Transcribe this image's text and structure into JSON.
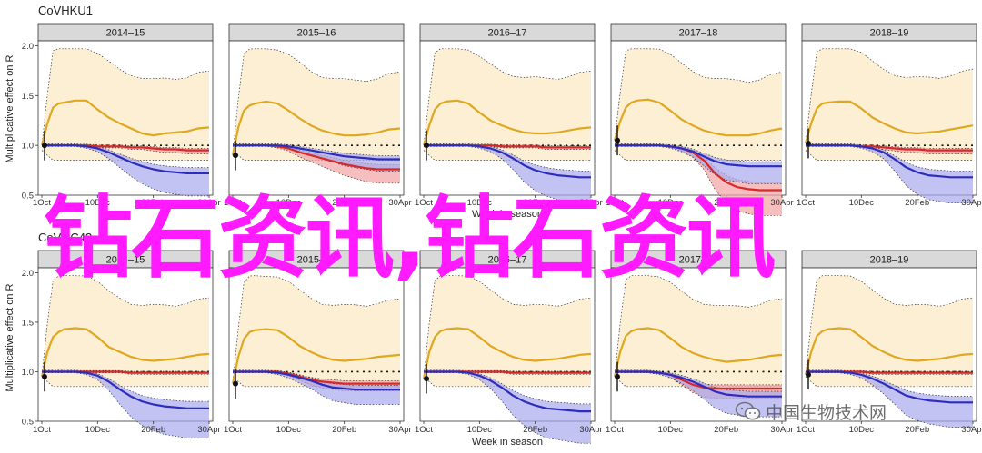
{
  "chart_data": [
    {
      "type": "line",
      "title": "CoVHKU1",
      "xlabel": "Week in season",
      "ylabel": "Multiplicative effect on R",
      "ylim": [
        0.5,
        2.05
      ],
      "yticks": [
        "0.5",
        "1.0",
        "1.5",
        "2.0"
      ],
      "xticks": [
        "1Oct",
        "10Dec",
        "20Feb",
        "30Apr"
      ],
      "reference_line": 1.0,
      "facets": [
        {
          "label": "2014–15",
          "x": [
            0,
            1,
            2,
            3,
            4,
            6,
            8,
            10,
            12,
            14,
            16,
            18,
            20,
            22,
            24,
            26,
            28,
            30
          ],
          "series": [
            {
              "color": "gold",
              "values": [
                1.0,
                1.22,
                1.38,
                1.42,
                1.43,
                1.45,
                1.45,
                1.36,
                1.28,
                1.22,
                1.17,
                1.12,
                1.1,
                1.12,
                1.13,
                1.14,
                1.17,
                1.18
              ]
            },
            {
              "color": "red",
              "values": [
                1.0,
                1.0,
                1.0,
                1.0,
                1.0,
                1.0,
                1.0,
                0.99,
                0.99,
                0.99,
                0.98,
                0.98,
                0.97,
                0.96,
                0.96,
                0.95,
                0.95,
                0.95
              ]
            },
            {
              "color": "blue",
              "values": [
                1.0,
                1.0,
                1.0,
                1.0,
                1.0,
                1.0,
                0.99,
                0.97,
                0.93,
                0.88,
                0.83,
                0.79,
                0.76,
                0.74,
                0.73,
                0.72,
                0.72,
                0.72
              ]
            }
          ]
        },
        {
          "label": "2015–16",
          "x": [
            0,
            1,
            2,
            3,
            4,
            6,
            8,
            10,
            12,
            14,
            16,
            18,
            20,
            22,
            24,
            26,
            28,
            30
          ],
          "series": [
            {
              "color": "gold",
              "values": [
                0.9,
                1.18,
                1.35,
                1.4,
                1.42,
                1.44,
                1.42,
                1.35,
                1.27,
                1.2,
                1.15,
                1.12,
                1.1,
                1.1,
                1.11,
                1.13,
                1.16,
                1.17
              ]
            },
            {
              "color": "red",
              "values": [
                1.0,
                1.0,
                1.0,
                1.0,
                1.0,
                1.0,
                0.99,
                0.97,
                0.93,
                0.9,
                0.87,
                0.84,
                0.81,
                0.79,
                0.77,
                0.76,
                0.76,
                0.76
              ]
            },
            {
              "color": "blue",
              "values": [
                1.0,
                1.0,
                1.0,
                1.0,
                1.0,
                1.0,
                1.0,
                0.99,
                0.97,
                0.95,
                0.93,
                0.91,
                0.89,
                0.88,
                0.87,
                0.86,
                0.86,
                0.86
              ]
            }
          ]
        },
        {
          "label": "2016–17",
          "x": [
            0,
            1,
            2,
            3,
            4,
            6,
            8,
            10,
            12,
            14,
            16,
            18,
            20,
            22,
            24,
            26,
            28,
            30
          ],
          "series": [
            {
              "color": "gold",
              "values": [
                1.0,
                1.2,
                1.36,
                1.42,
                1.44,
                1.45,
                1.42,
                1.33,
                1.25,
                1.2,
                1.16,
                1.13,
                1.12,
                1.12,
                1.13,
                1.15,
                1.17,
                1.18
              ]
            },
            {
              "color": "red",
              "values": [
                1.0,
                1.0,
                1.0,
                1.0,
                1.0,
                1.0,
                1.0,
                1.0,
                1.0,
                0.99,
                0.99,
                0.99,
                0.99,
                0.98,
                0.98,
                0.98,
                0.98,
                0.98
              ]
            },
            {
              "color": "blue",
              "values": [
                1.0,
                1.0,
                1.0,
                1.0,
                1.0,
                1.0,
                1.0,
                0.99,
                0.97,
                0.93,
                0.87,
                0.8,
                0.75,
                0.72,
                0.7,
                0.69,
                0.68,
                0.68
              ]
            }
          ]
        },
        {
          "label": "2017–18",
          "x": [
            0,
            1,
            2,
            3,
            4,
            6,
            8,
            10,
            12,
            14,
            16,
            18,
            20,
            22,
            24,
            26,
            28,
            30
          ],
          "series": [
            {
              "color": "gold",
              "values": [
                1.05,
                1.24,
                1.38,
                1.43,
                1.45,
                1.46,
                1.43,
                1.35,
                1.26,
                1.2,
                1.15,
                1.12,
                1.1,
                1.1,
                1.1,
                1.12,
                1.15,
                1.17
              ]
            },
            {
              "color": "red",
              "values": [
                1.0,
                1.0,
                1.0,
                1.0,
                1.0,
                1.0,
                1.0,
                0.99,
                0.97,
                0.93,
                0.85,
                0.72,
                0.63,
                0.58,
                0.56,
                0.55,
                0.55,
                0.55
              ]
            },
            {
              "color": "blue",
              "values": [
                1.0,
                1.0,
                1.0,
                1.0,
                1.0,
                1.0,
                1.0,
                0.99,
                0.97,
                0.94,
                0.89,
                0.84,
                0.81,
                0.8,
                0.79,
                0.79,
                0.79,
                0.79
              ]
            }
          ]
        },
        {
          "label": "2018–19",
          "x": [
            0,
            1,
            2,
            3,
            4,
            6,
            8,
            10,
            12,
            14,
            16,
            18,
            20,
            22,
            24,
            26,
            28,
            30
          ],
          "series": [
            {
              "color": "gold",
              "values": [
                1.02,
                1.22,
                1.37,
                1.42,
                1.43,
                1.44,
                1.44,
                1.37,
                1.28,
                1.22,
                1.17,
                1.13,
                1.12,
                1.13,
                1.14,
                1.16,
                1.18,
                1.2
              ]
            },
            {
              "color": "red",
              "values": [
                1.0,
                1.0,
                1.0,
                1.0,
                1.0,
                1.0,
                1.0,
                0.99,
                0.99,
                0.98,
                0.97,
                0.96,
                0.96,
                0.95,
                0.95,
                0.95,
                0.95,
                0.95
              ]
            },
            {
              "color": "blue",
              "values": [
                1.0,
                1.0,
                1.0,
                1.0,
                1.0,
                1.0,
                1.0,
                0.99,
                0.97,
                0.93,
                0.86,
                0.78,
                0.73,
                0.7,
                0.69,
                0.68,
                0.68,
                0.68
              ]
            }
          ]
        }
      ]
    },
    {
      "type": "line",
      "title": "CoVOC43",
      "xlabel": "Week in season",
      "ylabel": "Multiplicative effect on R",
      "ylim": [
        0.5,
        2.05
      ],
      "yticks": [
        "0.5",
        "1.0",
        "1.5",
        "2.0"
      ],
      "xticks": [
        "1Oct",
        "10Dec",
        "20Feb",
        "30Apr"
      ],
      "reference_line": 1.0,
      "facets": [
        {
          "label": "2014–15",
          "x": [
            0,
            1,
            2,
            3,
            4,
            6,
            8,
            10,
            12,
            14,
            16,
            18,
            20,
            22,
            24,
            26,
            28,
            30
          ],
          "series": [
            {
              "color": "gold",
              "values": [
                0.95,
                1.2,
                1.35,
                1.4,
                1.43,
                1.44,
                1.43,
                1.35,
                1.25,
                1.2,
                1.15,
                1.12,
                1.11,
                1.12,
                1.13,
                1.15,
                1.17,
                1.18
              ]
            },
            {
              "color": "red",
              "values": [
                1.0,
                1.0,
                1.0,
                1.0,
                1.0,
                1.0,
                1.0,
                1.0,
                1.0,
                1.0,
                0.99,
                0.99,
                0.99,
                0.99,
                0.99,
                0.99,
                0.99,
                0.99
              ]
            },
            {
              "color": "blue",
              "values": [
                1.0,
                1.0,
                1.0,
                1.0,
                1.0,
                1.0,
                0.99,
                0.96,
                0.9,
                0.82,
                0.75,
                0.7,
                0.67,
                0.65,
                0.64,
                0.63,
                0.63,
                0.63
              ]
            }
          ]
        },
        {
          "label": "2015–16",
          "x": [
            0,
            1,
            2,
            3,
            4,
            6,
            8,
            10,
            12,
            14,
            16,
            18,
            20,
            22,
            24,
            26,
            28,
            30
          ],
          "series": [
            {
              "color": "gold",
              "values": [
                0.88,
                1.15,
                1.33,
                1.4,
                1.42,
                1.43,
                1.42,
                1.35,
                1.26,
                1.2,
                1.15,
                1.12,
                1.11,
                1.12,
                1.13,
                1.15,
                1.16,
                1.17
              ]
            },
            {
              "color": "red",
              "values": [
                1.0,
                1.0,
                1.0,
                1.0,
                1.0,
                1.0,
                1.0,
                0.98,
                0.95,
                0.92,
                0.9,
                0.89,
                0.88,
                0.88,
                0.88,
                0.88,
                0.88,
                0.88
              ]
            },
            {
              "color": "blue",
              "values": [
                1.0,
                1.0,
                1.0,
                1.0,
                1.0,
                1.0,
                0.99,
                0.97,
                0.94,
                0.91,
                0.87,
                0.84,
                0.83,
                0.82,
                0.82,
                0.82,
                0.82,
                0.82
              ]
            }
          ]
        },
        {
          "label": "2016–17",
          "x": [
            0,
            1,
            2,
            3,
            4,
            6,
            8,
            10,
            12,
            14,
            16,
            18,
            20,
            22,
            24,
            26,
            28,
            30
          ],
          "series": [
            {
              "color": "gold",
              "values": [
                0.93,
                1.2,
                1.35,
                1.41,
                1.43,
                1.44,
                1.43,
                1.35,
                1.26,
                1.2,
                1.15,
                1.12,
                1.11,
                1.12,
                1.13,
                1.15,
                1.17,
                1.18
              ]
            },
            {
              "color": "red",
              "values": [
                1.0,
                1.0,
                1.0,
                1.0,
                1.0,
                1.0,
                1.0,
                1.0,
                1.0,
                1.0,
                0.99,
                0.99,
                0.99,
                0.99,
                0.99,
                0.99,
                0.99,
                0.99
              ]
            },
            {
              "color": "blue",
              "values": [
                1.0,
                1.0,
                1.0,
                1.0,
                1.0,
                1.0,
                0.99,
                0.96,
                0.91,
                0.84,
                0.76,
                0.7,
                0.66,
                0.63,
                0.62,
                0.61,
                0.6,
                0.6
              ]
            }
          ]
        },
        {
          "label": "2017–18",
          "x": [
            0,
            1,
            2,
            3,
            4,
            6,
            8,
            10,
            12,
            14,
            16,
            18,
            20,
            22,
            24,
            26,
            28,
            30
          ],
          "series": [
            {
              "color": "gold",
              "values": [
                0.95,
                1.2,
                1.36,
                1.41,
                1.43,
                1.44,
                1.42,
                1.34,
                1.25,
                1.19,
                1.15,
                1.12,
                1.1,
                1.11,
                1.12,
                1.14,
                1.16,
                1.17
              ]
            },
            {
              "color": "red",
              "values": [
                1.0,
                1.0,
                1.0,
                1.0,
                1.0,
                1.0,
                0.99,
                0.97,
                0.92,
                0.87,
                0.84,
                0.83,
                0.83,
                0.83,
                0.83,
                0.83,
                0.83,
                0.83
              ]
            },
            {
              "color": "blue",
              "values": [
                1.0,
                1.0,
                1.0,
                1.0,
                1.0,
                1.0,
                0.99,
                0.97,
                0.94,
                0.9,
                0.85,
                0.8,
                0.77,
                0.76,
                0.75,
                0.75,
                0.75,
                0.75
              ]
            }
          ]
        },
        {
          "label": "2018–19",
          "x": [
            0,
            1,
            2,
            3,
            4,
            6,
            8,
            10,
            12,
            14,
            16,
            18,
            20,
            22,
            24,
            26,
            28,
            30
          ],
          "series": [
            {
              "color": "gold",
              "values": [
                0.97,
                1.2,
                1.36,
                1.41,
                1.43,
                1.44,
                1.43,
                1.35,
                1.26,
                1.2,
                1.15,
                1.12,
                1.11,
                1.12,
                1.13,
                1.15,
                1.17,
                1.18
              ]
            },
            {
              "color": "red",
              "values": [
                1.0,
                1.0,
                1.0,
                1.0,
                1.0,
                1.0,
                1.0,
                1.0,
                0.99,
                0.99,
                0.99,
                0.99,
                0.99,
                0.99,
                0.99,
                0.99,
                0.99,
                0.99
              ]
            },
            {
              "color": "blue",
              "values": [
                1.0,
                1.0,
                1.0,
                1.0,
                1.0,
                1.0,
                0.99,
                0.97,
                0.93,
                0.88,
                0.82,
                0.76,
                0.73,
                0.71,
                0.7,
                0.69,
                0.69,
                0.69
              ]
            }
          ]
        }
      ]
    }
  ],
  "colors": {
    "gold": "#e0a820",
    "gold_band": "#fbe8c0",
    "red": "#d62a2a",
    "red_band": "#f2a3a3",
    "blue": "#2d2dbd",
    "blue_band": "#a9a9ee",
    "strip": "#d9d9d9"
  },
  "overlay": {
    "text": "钻石资讯,钻石资讯"
  },
  "watermark": {
    "text": "中国生物技术网"
  }
}
